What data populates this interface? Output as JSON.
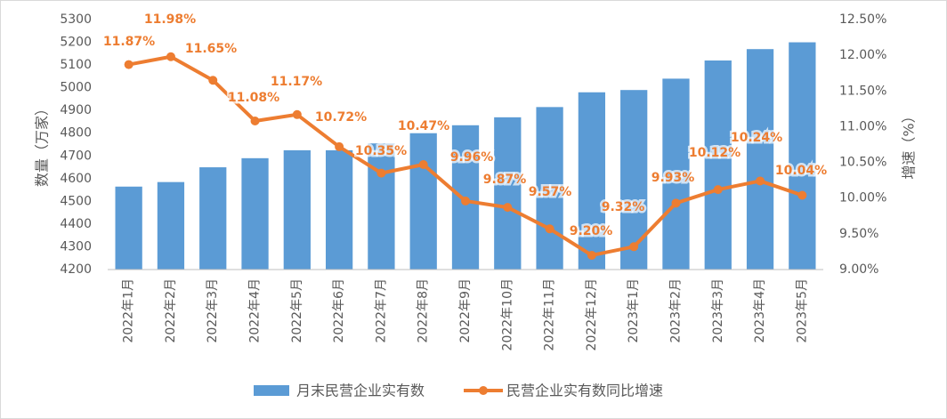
{
  "chart_data": {
    "type": "bar-line",
    "y_label": "数量（万家）",
    "y2_label": "增速（%）",
    "categories": [
      "2022年1月",
      "2022年2月",
      "2022年3月",
      "2022年4月",
      "2022年5月",
      "2022年6月",
      "2022年7月",
      "2022年8月",
      "2022年9月",
      "2022年10月",
      "2022年11月",
      "2022年12月",
      "2023年1月",
      "2023年2月",
      "2023年3月",
      "2023年4月",
      "2023年5月"
    ],
    "series": [
      {
        "name": "月末民营企业实有数",
        "type": "bar",
        "color": "#5b9bd5",
        "values": [
          4565,
          4585,
          4650,
          4690,
          4725,
          4725,
          4755,
          4800,
          4835,
          4870,
          4915,
          4980,
          4990,
          5040,
          5120,
          5170,
          5200
        ]
      },
      {
        "name": "民营企业实有数同比增速",
        "type": "line",
        "axis": "y2",
        "color": "#ed7d31",
        "values": [
          11.87,
          11.98,
          11.65,
          11.08,
          11.17,
          10.72,
          10.35,
          10.47,
          9.96,
          9.87,
          9.57,
          9.2,
          9.32,
          9.93,
          10.12,
          10.24,
          10.04
        ],
        "value_labels": [
          "11.87%",
          "11.98%",
          "11.65%",
          "11.08%",
          "11.17%",
          "10.72%",
          "10.35%",
          "10.47%",
          "9.96%",
          "9.87%",
          "9.57%",
          "9.20%",
          "9.32%",
          "9.93%",
          "10.12%",
          "10.24%",
          "10.04%"
        ]
      }
    ],
    "ylim": [
      4200,
      5300
    ],
    "yticks": [
      4200,
      4300,
      4400,
      4500,
      4600,
      4700,
      4800,
      4900,
      5000,
      5100,
      5200,
      5300
    ],
    "y2lim": [
      9.0,
      12.5
    ],
    "y2ticks": [
      {
        "value": 9.0,
        "label": "9.00%"
      },
      {
        "value": 9.5,
        "label": "9.50%"
      },
      {
        "value": 10.0,
        "label": "10.00%"
      },
      {
        "value": 10.5,
        "label": "10.50%"
      },
      {
        "value": 11.0,
        "label": "11.00%"
      },
      {
        "value": 11.5,
        "label": "11.50%"
      },
      {
        "value": 12.0,
        "label": "12.00%"
      },
      {
        "value": 12.5,
        "label": "12.50%"
      }
    ],
    "grid": false
  }
}
